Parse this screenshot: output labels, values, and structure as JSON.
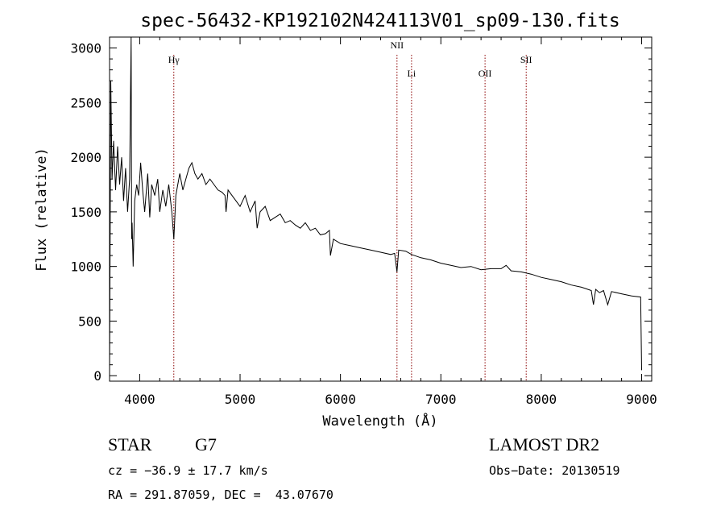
{
  "chart_data": {
    "type": "line",
    "title": "spec-56432-KP192102N424113V01_sp09-130.fits",
    "xlabel": "Wavelength (Å)",
    "ylabel": "Flux (relative)",
    "xlim": [
      3700,
      9100
    ],
    "ylim": [
      -50,
      3100
    ],
    "xticks": [
      4000,
      5000,
      6000,
      7000,
      8000,
      9000
    ],
    "yticks": [
      0,
      500,
      1000,
      1500,
      2000,
      2500,
      3000
    ],
    "series": [
      {
        "x": [
          3700,
          3712,
          3725,
          3740,
          3760,
          3780,
          3800,
          3820,
          3840,
          3860,
          3880,
          3900,
          3915,
          3920,
          3925,
          3935,
          3950,
          3970,
          3990,
          4010,
          4030,
          4050,
          4080,
          4100,
          4120,
          4150,
          4180,
          4200,
          4230,
          4260,
          4290,
          4320,
          4340,
          4360,
          4380,
          4400,
          4430,
          4460,
          4490,
          4520,
          4550,
          4580,
          4620,
          4660,
          4700,
          4740,
          4780,
          4820,
          4850,
          4860,
          4880,
          4920,
          4960,
          5000,
          5050,
          5100,
          5150,
          5170,
          5200,
          5250,
          5300,
          5350,
          5400,
          5450,
          5500,
          5550,
          5600,
          5650,
          5700,
          5750,
          5800,
          5850,
          5890,
          5900,
          5930,
          6000,
          6100,
          6200,
          6300,
          6400,
          6500,
          6540,
          6563,
          6580,
          6650,
          6708,
          6800,
          6900,
          7000,
          7100,
          7200,
          7300,
          7400,
          7500,
          7600,
          7650,
          7700,
          7800,
          7900,
          8000,
          8100,
          8200,
          8300,
          8400,
          8498,
          8520,
          8542,
          8580,
          8620,
          8662,
          8700,
          8800,
          8900,
          8990,
          9000
        ],
        "values": [
          0,
          2700,
          1800,
          2150,
          1700,
          2100,
          1750,
          2000,
          1600,
          1900,
          1500,
          1800,
          3100,
          1250,
          1400,
          1000,
          1600,
          1750,
          1650,
          1950,
          1700,
          1500,
          1850,
          1450,
          1750,
          1650,
          1800,
          1500,
          1700,
          1550,
          1750,
          1500,
          1250,
          1650,
          1750,
          1850,
          1700,
          1800,
          1900,
          1950,
          1850,
          1800,
          1850,
          1750,
          1800,
          1750,
          1700,
          1680,
          1650,
          1500,
          1700,
          1650,
          1600,
          1550,
          1650,
          1500,
          1600,
          1350,
          1500,
          1550,
          1420,
          1450,
          1480,
          1400,
          1420,
          1380,
          1350,
          1400,
          1330,
          1350,
          1290,
          1300,
          1330,
          1100,
          1250,
          1210,
          1190,
          1170,
          1150,
          1130,
          1110,
          1120,
          950,
          1150,
          1140,
          1110,
          1080,
          1060,
          1030,
          1010,
          990,
          1000,
          970,
          980,
          980,
          1010,
          960,
          950,
          930,
          900,
          880,
          860,
          830,
          810,
          780,
          650,
          790,
          760,
          780,
          650,
          770,
          750,
          730,
          720,
          50
        ]
      }
    ],
    "emission_lines": [
      {
        "name": "Hγ",
        "x": 4340,
        "label_y_offset": 0
      },
      {
        "name": "NII",
        "x": 6563,
        "label_y_offset": -18
      },
      {
        "name": "Li",
        "x": 6708,
        "label_y_offset": 17
      },
      {
        "name": "OII",
        "x": 7440,
        "label_y_offset": 17
      },
      {
        "name": "SII",
        "x": 7850,
        "label_y_offset": 0
      }
    ],
    "line_color": "#8b0000"
  },
  "info": {
    "object_class": "STAR",
    "subclass": "G7",
    "survey": "LAMOST DR2",
    "redshift": "cz = −36.9 ± 17.7 km/s",
    "obs_date": "Obs−Date: 20130519",
    "coords": "RA = 291.87059, DEC =  43.07670"
  }
}
